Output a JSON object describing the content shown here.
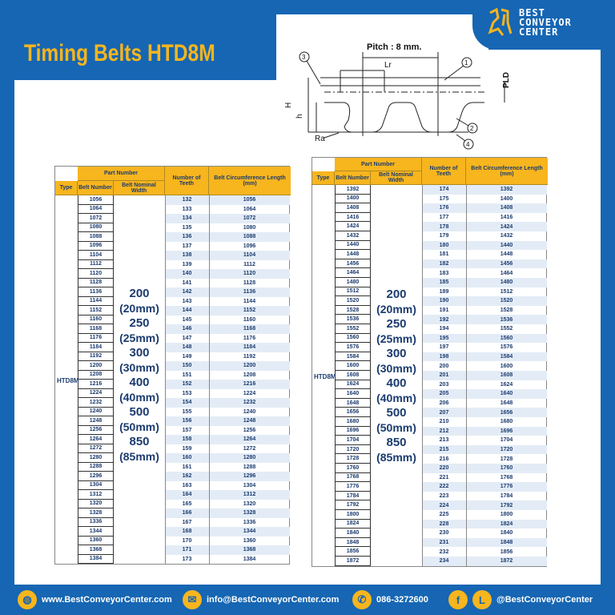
{
  "title": "Timing Belts HTD8M",
  "logo": {
    "line1": "BEST",
    "line2": "CONVEYOR",
    "line3": "CENTER"
  },
  "diagram": {
    "pitch": "Pitch : 8 mm.",
    "lr": "Lr",
    "pld": "PLD",
    "h_big": "H",
    "h_small": "h",
    "ra": "Ra",
    "callouts": [
      "1",
      "2",
      "3",
      "4"
    ]
  },
  "table_headers": {
    "part_number": "Part Number",
    "type": "Type",
    "belt_number": "Belt Number",
    "nominal_width": "Belt Nominal Width",
    "teeth": "Number of Teeth",
    "length": "Belt Circumference Length (mm)"
  },
  "type_value": "HTD8M",
  "widths": [
    "200",
    "(20mm)",
    "250",
    "(25mm)",
    "300",
    "(30mm)",
    "400",
    "(40mm)",
    "500",
    "(50mm)",
    "850",
    "(85mm)"
  ],
  "left_table": {
    "belt_numbers": [
      "1056",
      "1064",
      "1072",
      "1080",
      "1088",
      "1096",
      "1104",
      "1112",
      "1120",
      "1128",
      "1136",
      "1144",
      "1152",
      "1160",
      "1168",
      "1176",
      "1184",
      "1192",
      "1200",
      "1208",
      "1216",
      "1224",
      "1232",
      "1240",
      "1248",
      "1256",
      "1264",
      "1272",
      "1280",
      "1288",
      "1296",
      "1304",
      "1312",
      "1320",
      "1328",
      "1336",
      "1344",
      "1360",
      "1368",
      "1384"
    ],
    "teeth": [
      "132",
      "133",
      "134",
      "135",
      "136",
      "137",
      "138",
      "139",
      "140",
      "141",
      "142",
      "143",
      "144",
      "145",
      "146",
      "147",
      "148",
      "149",
      "150",
      "151",
      "152",
      "153",
      "154",
      "155",
      "156",
      "157",
      "158",
      "159",
      "160",
      "161",
      "162",
      "163",
      "164",
      "165",
      "166",
      "167",
      "168",
      "170",
      "171",
      "173"
    ],
    "lengths": [
      "1056",
      "1064",
      "1072",
      "1080",
      "1088",
      "1096",
      "1104",
      "1112",
      "1120",
      "1128",
      "1136",
      "1144",
      "1152",
      "1160",
      "1168",
      "1176",
      "1184",
      "1192",
      "1200",
      "1208",
      "1216",
      "1224",
      "1232",
      "1240",
      "1248",
      "1256",
      "1264",
      "1272",
      "1280",
      "1288",
      "1296",
      "1304",
      "1312",
      "1320",
      "1328",
      "1336",
      "1344",
      "1360",
      "1368",
      "1384"
    ]
  },
  "right_table": {
    "belt_numbers": [
      "1392",
      "1400",
      "1408",
      "1416",
      "1424",
      "1432",
      "1440",
      "1448",
      "1456",
      "1464",
      "1480",
      "1512",
      "1520",
      "1528",
      "1536",
      "1552",
      "1560",
      "1576",
      "1584",
      "1600",
      "1608",
      "1624",
      "1640",
      "1648",
      "1656",
      "1680",
      "1696",
      "1704",
      "1720",
      "1728",
      "1760",
      "1768",
      "1776",
      "1784",
      "1792",
      "1800",
      "1824",
      "1840",
      "1848",
      "1856",
      "1872"
    ],
    "teeth": [
      "174",
      "175",
      "176",
      "177",
      "178",
      "179",
      "180",
      "181",
      "182",
      "183",
      "185",
      "189",
      "190",
      "191",
      "192",
      "194",
      "195",
      "197",
      "198",
      "200",
      "201",
      "203",
      "205",
      "206",
      "207",
      "210",
      "212",
      "213",
      "215",
      "216",
      "220",
      "221",
      "222",
      "223",
      "224",
      "225",
      "228",
      "230",
      "231",
      "232",
      "234"
    ],
    "lengths": [
      "1392",
      "1400",
      "1408",
      "1416",
      "1424",
      "1432",
      "1440",
      "1448",
      "1456",
      "1464",
      "1480",
      "1512",
      "1520",
      "1528",
      "1536",
      "1552",
      "1560",
      "1576",
      "1584",
      "1600",
      "1608",
      "1624",
      "1640",
      "1648",
      "1656",
      "1680",
      "1696",
      "1704",
      "1720",
      "1728",
      "1760",
      "1768",
      "1776",
      "1784",
      "1792",
      "1800",
      "1824",
      "1840",
      "1848",
      "1856",
      "1872"
    ]
  },
  "footer": {
    "website": "www.BestConveyorCenter.com",
    "email": "info@BestConveyorCenter.com",
    "phone": "086-3272600",
    "social": "@BestConveyorCenter"
  },
  "colors": {
    "brand_blue": "#1666b3",
    "accent_yellow": "#f7b51e",
    "text_navy": "#1b3b6f",
    "stripe": "#e3ecf6"
  }
}
